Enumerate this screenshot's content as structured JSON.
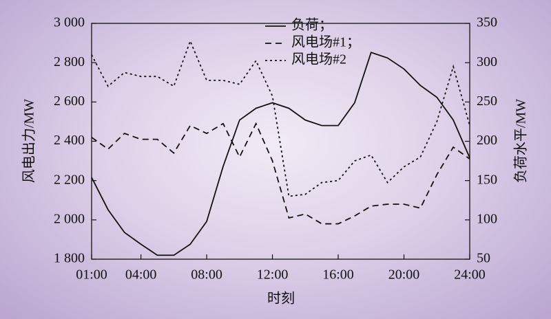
{
  "chart_data": {
    "type": "line",
    "xlabel": "时刻",
    "ylabel": "风电出力/MW",
    "y2label": "负荷水平/MW",
    "x": [
      1,
      2,
      3,
      4,
      5,
      6,
      7,
      8,
      9,
      10,
      11,
      12,
      13,
      14,
      15,
      16,
      17,
      18,
      19,
      20,
      21,
      22,
      23,
      24
    ],
    "xlim": [
      1,
      24
    ],
    "xticks": [
      {
        "value": 1,
        "label": "01:00"
      },
      {
        "value": 4,
        "label": "04:00"
      },
      {
        "value": 8,
        "label": "08:00"
      },
      {
        "value": 12,
        "label": "12:00"
      },
      {
        "value": 16,
        "label": "16:00"
      },
      {
        "value": 20,
        "label": "20:00"
      },
      {
        "value": 24,
        "label": "24:00"
      }
    ],
    "ylim": [
      1800,
      3000
    ],
    "yticks": [
      {
        "value": 1800,
        "label": "1 800"
      },
      {
        "value": 2000,
        "label": "2 000"
      },
      {
        "value": 2200,
        "label": "2 200"
      },
      {
        "value": 2400,
        "label": "2 400"
      },
      {
        "value": 2600,
        "label": "2 600"
      },
      {
        "value": 2800,
        "label": "2 800"
      },
      {
        "value": 3000,
        "label": "3 000"
      }
    ],
    "y2lim": [
      50,
      350
    ],
    "y2ticks": [
      50,
      100,
      150,
      200,
      250,
      300,
      350
    ],
    "legend": "top",
    "series": [
      {
        "name": "负荷；",
        "color": "#111111",
        "dash": "solid",
        "axis": "y2",
        "values": [
          154,
          113,
          84,
          69,
          55,
          55,
          69,
          98,
          168,
          227,
          242,
          249,
          242,
          227,
          220,
          220,
          249,
          313,
          306,
          292,
          271,
          256,
          227,
          179
        ]
      },
      {
        "name": "风电场#1；",
        "color": "#111111",
        "dash": "dashed",
        "values": [
          2420,
          2360,
          2440,
          2410,
          2410,
          2340,
          2480,
          2440,
          2490,
          2320,
          2490,
          2300,
          2010,
          2030,
          1980,
          1980,
          2020,
          2070,
          2080,
          2080,
          2060,
          2230,
          2370,
          2310
        ]
      },
      {
        "name": "风电场#2",
        "color": "#111111",
        "dash": "dotted",
        "values": [
          2840,
          2680,
          2750,
          2730,
          2730,
          2680,
          2910,
          2710,
          2710,
          2690,
          2810,
          2630,
          2120,
          2130,
          2190,
          2200,
          2300,
          2330,
          2190,
          2270,
          2320,
          2500,
          2780,
          2480
        ]
      }
    ]
  }
}
